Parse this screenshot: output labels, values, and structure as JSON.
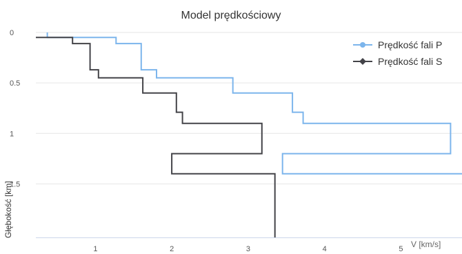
{
  "chart_data": {
    "type": "line",
    "title": "Model prędkościowy",
    "xlabel": "V [km/s]",
    "ylabel": "Głębokość [km]",
    "xlim": [
      0.22,
      5.8
    ],
    "ylim": [
      0,
      2.03
    ],
    "y_inverted": true,
    "xticks": [
      1,
      2,
      3,
      4,
      5
    ],
    "yticks": [
      0,
      0.5,
      1,
      1.5
    ],
    "ytick_labels": [
      "0",
      "0.5",
      "1",
      "1.5"
    ],
    "grid": "horizontal",
    "legend_position": "top-right",
    "series": [
      {
        "name": "Prędkość fali P",
        "color": "#7cb5ec",
        "marker": "circle",
        "x": [
          0.37,
          0.37,
          1.27,
          1.27,
          1.6,
          1.6,
          1.8,
          1.8,
          2.8,
          2.8,
          3.58,
          3.58,
          3.72,
          3.72,
          5.65,
          5.65,
          3.45,
          3.45,
          5.8
        ],
        "y": [
          0,
          0.05,
          0.05,
          0.11,
          0.11,
          0.37,
          0.37,
          0.45,
          0.45,
          0.6,
          0.6,
          0.79,
          0.79,
          0.9,
          0.9,
          1.2,
          1.2,
          1.4,
          1.4
        ]
      },
      {
        "name": "Prędkość fali S",
        "color": "#434348",
        "marker": "diamond",
        "x": [
          0.22,
          0.7,
          0.7,
          0.93,
          0.93,
          1.04,
          1.04,
          1.62,
          1.62,
          2.06,
          2.06,
          2.14,
          2.14,
          3.18,
          3.18,
          2.0,
          2.0,
          3.35,
          3.35
        ],
        "y": [
          0.05,
          0.05,
          0.11,
          0.11,
          0.37,
          0.37,
          0.45,
          0.45,
          0.6,
          0.6,
          0.79,
          0.79,
          0.9,
          0.9,
          1.2,
          1.2,
          1.4,
          1.4,
          2.03
        ]
      }
    ]
  }
}
